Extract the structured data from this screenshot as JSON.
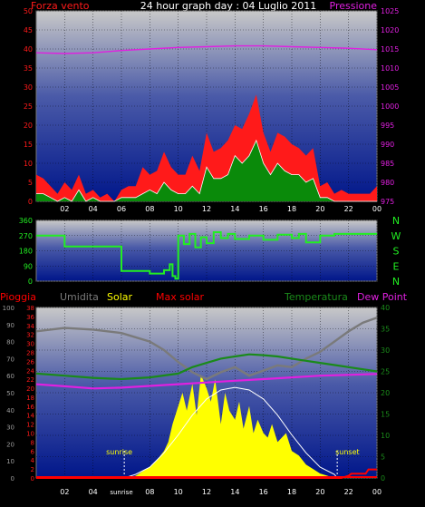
{
  "header": {
    "left_label": "Forza vento",
    "title": "24 hour graph day : 04 Luglio 2011",
    "right_label": "Pressione"
  },
  "colors": {
    "wind_gust": "#ff1a1a",
    "wind_avg": "#0a8a0a",
    "wind_line": "#ffffff",
    "pressure": "#e020e0",
    "direction": "#22ee22",
    "solar": "#ffff00",
    "max_solar": "#ffffff",
    "humidity": "#7a7a7a",
    "temperature": "#1a8a1a",
    "dew_point": "#e020e0",
    "rain": "#ff0000",
    "panel_top": "#c8c8c8",
    "panel_bottom": "#001a8c"
  },
  "chart_data": [
    {
      "type": "area",
      "id": "wind_pressure",
      "left_axis_label": "Forza vento",
      "right_axis_label": "Pressione",
      "ylim_left": [
        0,
        50
      ],
      "yticks_left": [
        0,
        5,
        10,
        15,
        20,
        25,
        30,
        35,
        40,
        45,
        50
      ],
      "ylim_right": [
        975,
        1025
      ],
      "yticks_right": [
        975,
        980,
        985,
        990,
        995,
        1000,
        1005,
        1010,
        1015,
        1020,
        1025
      ],
      "x_tick_labels": [
        "02",
        "04",
        "06",
        "08",
        "10",
        "12",
        "14",
        "16",
        "18",
        "20",
        "22",
        "00"
      ],
      "grid": true,
      "series": [
        {
          "name": "wind_gust",
          "x": [
            0,
            0.5,
            1,
            1.5,
            2,
            2.5,
            3,
            3.5,
            4,
            4.5,
            5,
            5.5,
            6,
            6.5,
            7,
            7.5,
            8,
            8.5,
            9,
            9.5,
            10,
            10.5,
            11,
            11.5,
            12,
            12.5,
            13,
            13.5,
            14,
            14.5,
            15,
            15.5,
            16,
            16.5,
            17,
            17.5,
            18,
            18.5,
            19,
            19.5,
            20,
            20.5,
            21,
            21.5,
            22,
            22.5,
            23,
            23.5,
            24
          ],
          "values": [
            7,
            6,
            4,
            2,
            5,
            3,
            7,
            2,
            3,
            1,
            2,
            0,
            3,
            4,
            4,
            9,
            7,
            8,
            13,
            9,
            7,
            7,
            12,
            8,
            18,
            13,
            14,
            16,
            20,
            19,
            23,
            28,
            18,
            13,
            18,
            17,
            15,
            14,
            12,
            14,
            4,
            5,
            2,
            3,
            2,
            2,
            2,
            2,
            4
          ]
        },
        {
          "name": "wind_avg",
          "x": [
            0,
            0.5,
            1,
            1.5,
            2,
            2.5,
            3,
            3.5,
            4,
            4.5,
            5,
            5.5,
            6,
            6.5,
            7,
            7.5,
            8,
            8.5,
            9,
            9.5,
            10,
            10.5,
            11,
            11.5,
            12,
            12.5,
            13,
            13.5,
            14,
            14.5,
            15,
            15.5,
            16,
            16.5,
            17,
            17.5,
            18,
            18.5,
            19,
            19.5,
            20,
            20.5,
            21,
            21.5,
            22,
            22.5,
            23,
            23.5,
            24
          ],
          "values": [
            2,
            2,
            1,
            0,
            1,
            0,
            3,
            0,
            1,
            0,
            0,
            0,
            1,
            1,
            1,
            2,
            3,
            2,
            5,
            3,
            2,
            2,
            4,
            2,
            9,
            6,
            6,
            7,
            12,
            10,
            12,
            16,
            10,
            7,
            10,
            8,
            7,
            7,
            5,
            6,
            1,
            1,
            0,
            0,
            0,
            0,
            0,
            0,
            0
          ]
        },
        {
          "name": "pressure",
          "x": [
            0,
            2,
            4,
            6,
            8,
            10,
            12,
            14,
            16,
            18,
            20,
            22,
            24
          ],
          "values": [
            1014.0,
            1013.8,
            1014.0,
            1014.6,
            1015.0,
            1015.4,
            1015.6,
            1015.8,
            1015.8,
            1015.6,
            1015.4,
            1015.2,
            1014.8
          ]
        }
      ]
    },
    {
      "type": "line",
      "id": "wind_direction",
      "ylim": [
        0,
        360
      ],
      "yticks": [
        0,
        90,
        180,
        270,
        360
      ],
      "compass_labels": [
        "N",
        "W",
        "S",
        "E",
        "N"
      ],
      "series": [
        {
          "name": "direction",
          "x": [
            0,
            1.8,
            2,
            5.5,
            6,
            7.5,
            8,
            8.8,
            9,
            9.4,
            9.6,
            9.8,
            10,
            10.4,
            10.8,
            11.2,
            11.6,
            12,
            12.5,
            13,
            13.5,
            14,
            15,
            16,
            17,
            18,
            18.5,
            19,
            20,
            21,
            24
          ],
          "values": [
            270,
            270,
            205,
            205,
            60,
            60,
            45,
            45,
            65,
            100,
            30,
            15,
            270,
            220,
            280,
            200,
            260,
            225,
            290,
            255,
            280,
            250,
            270,
            245,
            275,
            255,
            280,
            230,
            270,
            280,
            280
          ]
        }
      ]
    },
    {
      "type": "area",
      "id": "solar_temp_hum",
      "legend": [
        "Pioggia",
        "Umidita",
        "Solar",
        "Max solar",
        "Temperatura",
        "Dew Point"
      ],
      "ylim_humidity": [
        0,
        100
      ],
      "yticks_humidity": [
        0,
        10,
        20,
        30,
        40,
        50,
        60,
        70,
        80,
        90,
        100
      ],
      "ylim_temperature": [
        0,
        38
      ],
      "yticks_temperature": [
        0,
        2,
        4,
        6,
        8,
        10,
        12,
        14,
        16,
        18,
        20,
        22,
        24,
        26,
        28,
        30,
        32,
        34,
        36,
        38
      ],
      "ylim_right": [
        0,
        40
      ],
      "yticks_right": [
        0,
        5,
        10,
        15,
        20,
        25,
        30,
        35,
        40
      ],
      "x_tick_labels": [
        "02",
        "04",
        "sunrise",
        "08",
        "10",
        "12",
        "14",
        "16",
        "18",
        "20",
        "22",
        "00"
      ],
      "annotations": [
        "sunrise",
        "sunset"
      ],
      "series": [
        {
          "name": "humidity",
          "x": [
            0,
            2,
            4,
            6,
            8,
            9,
            10,
            11,
            12,
            13,
            14,
            15,
            16,
            17,
            18,
            19,
            20,
            21,
            22,
            23,
            24
          ],
          "values": [
            86,
            88,
            87,
            85,
            80,
            75,
            68,
            62,
            58,
            62,
            65,
            60,
            63,
            66,
            65,
            70,
            74,
            80,
            86,
            91,
            94
          ]
        },
        {
          "name": "temperature",
          "x": [
            0,
            2,
            4,
            6,
            8,
            10,
            11,
            12,
            13,
            14,
            15,
            16,
            17,
            18,
            19,
            20,
            22,
            24
          ],
          "values": [
            24.5,
            24.0,
            23.5,
            23.2,
            23.6,
            24.5,
            26.0,
            27.0,
            28.0,
            28.5,
            29.0,
            28.8,
            28.5,
            28.0,
            27.5,
            27.0,
            26.0,
            25.0
          ]
        },
        {
          "name": "dew_point",
          "x": [
            0,
            2,
            4,
            6,
            8,
            10,
            12,
            14,
            16,
            18,
            20,
            22,
            24
          ],
          "values": [
            22.0,
            21.5,
            21.0,
            21.2,
            21.6,
            22.0,
            22.4,
            22.8,
            23.2,
            23.6,
            24.0,
            24.2,
            24.4
          ]
        },
        {
          "name": "solar",
          "x": [
            0,
            6.5,
            7,
            7.5,
            8,
            8.5,
            9,
            9.3,
            9.6,
            10,
            10.3,
            10.6,
            11,
            11.3,
            11.6,
            12,
            12.3,
            12.6,
            13,
            13.3,
            13.6,
            14,
            14.3,
            14.6,
            15,
            15.3,
            15.6,
            16,
            16.3,
            16.6,
            17,
            17.3,
            17.6,
            18,
            18.5,
            19,
            19.5,
            20,
            20.5,
            21,
            24
          ],
          "values": [
            0,
            0,
            0.5,
            1.5,
            2.5,
            4,
            6,
            8,
            12,
            16,
            19,
            15,
            21,
            14,
            23,
            20,
            17,
            22,
            12,
            19,
            15,
            13,
            17,
            11,
            16,
            10,
            13,
            10,
            9,
            12,
            8,
            9,
            10,
            6,
            5,
            3,
            2,
            1,
            0.5,
            0,
            0
          ]
        },
        {
          "name": "max_solar",
          "x": [
            6.2,
            7,
            8,
            9,
            10,
            11,
            12,
            13,
            14,
            15,
            16,
            17,
            18,
            19,
            20,
            21,
            21.2
          ],
          "values": [
            0,
            0.8,
            2.4,
            5.6,
            9.6,
            14.0,
            17.6,
            19.6,
            20.2,
            19.6,
            17.6,
            14.0,
            9.6,
            5.6,
            2.4,
            0.8,
            0
          ]
        },
        {
          "name": "rain",
          "x": [
            0,
            21.5,
            22,
            22.2,
            23.2,
            23.4,
            24
          ],
          "values": [
            0,
            0,
            0.5,
            1.0,
            1.0,
            2.0,
            2.0
          ]
        }
      ]
    }
  ]
}
